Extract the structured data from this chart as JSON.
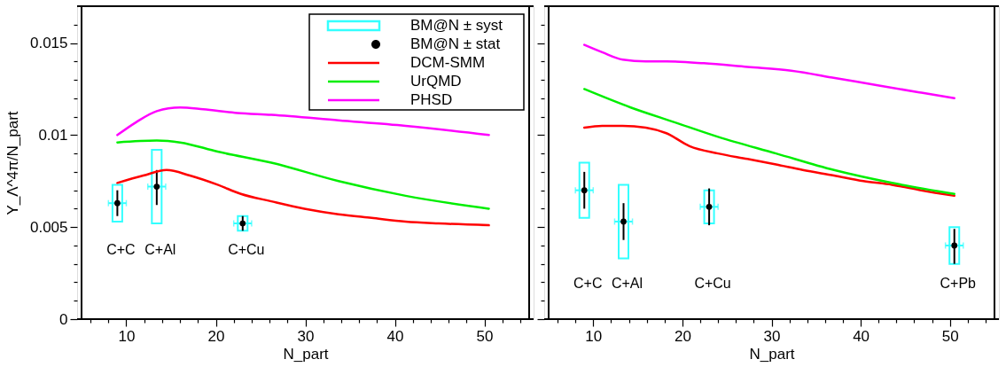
{
  "chart_data": [
    {
      "type": "line",
      "xlabel": "N_part",
      "ylabel": "Y_Λ^4π/N_part",
      "xlim": [
        5,
        55
      ],
      "ylim": [
        0,
        0.017
      ],
      "xticks": [
        {
          "value": 6,
          "label": null
        },
        {
          "value": 8,
          "label": null
        },
        10,
        {
          "value": 12,
          "label": null
        },
        {
          "value": 14,
          "label": null
        },
        {
          "value": 16,
          "label": null
        },
        {
          "value": 18,
          "label": null
        },
        20,
        {
          "value": 22,
          "label": null
        },
        {
          "value": 24,
          "label": null
        },
        {
          "value": 26,
          "label": null
        },
        {
          "value": 28,
          "label": null
        },
        30,
        {
          "value": 32,
          "label": null
        },
        {
          "value": 34,
          "label": null
        },
        {
          "value": 36,
          "label": null
        },
        {
          "value": 38,
          "label": null
        },
        40,
        {
          "value": 42,
          "label": null
        },
        {
          "value": 44,
          "label": null
        },
        {
          "value": 46,
          "label": null
        },
        {
          "value": 48,
          "label": null
        },
        50,
        {
          "value": 52,
          "label": null
        },
        {
          "value": 54,
          "label": null
        }
      ],
      "yticks": [
        0,
        {
          "value": 0.001,
          "label": null
        },
        {
          "value": 0.002,
          "label": null
        },
        {
          "value": 0.003,
          "label": null
        },
        {
          "value": 0.004,
          "label": null
        },
        0.005,
        {
          "value": 0.006,
          "label": null
        },
        {
          "value": 0.007,
          "label": null
        },
        {
          "value": 0.008,
          "label": null
        },
        {
          "value": 0.009,
          "label": null
        },
        0.01,
        {
          "value": 0.011,
          "label": null
        },
        {
          "value": 0.012,
          "label": null
        },
        {
          "value": 0.013,
          "label": null
        },
        {
          "value": 0.014,
          "label": null
        },
        0.015,
        {
          "value": 0.016,
          "label": null
        }
      ],
      "legend": "top right",
      "line_style": "solid",
      "series": [
        {
          "name": "BM@N  ± syst",
          "type": "bar",
          "color": "#33ffff",
          "x": [
            9,
            13.4,
            23
          ],
          "base": [
            0.0053,
            0.0052,
            0.0048
          ],
          "values": [
            0.002,
            0.004,
            0.0008
          ]
        },
        {
          "name": "BM@N  ± stat",
          "type": "scatter",
          "marker": "circle",
          "color": "#000000",
          "x": [
            9,
            13.4,
            23
          ],
          "values": [
            0.0063,
            0.0072,
            0.0052
          ],
          "errors": [
            [
              0.0056,
              0.007
            ],
            [
              0.0062,
              0.0081
            ],
            [
              0.0048,
              0.0056
            ]
          ],
          "xerrors": [
            [
              8,
              10
            ],
            [
              12.4,
              14.4
            ],
            [
              22,
              24
            ]
          ]
        },
        {
          "name": "DCM-SMM",
          "color": "#ff0000",
          "x": [
            9,
            11.9,
            14.5,
            17.1,
            20.2,
            22.8,
            26.2,
            29.9,
            33.7,
            37.4,
            41.2,
            44.9,
            50.5
          ],
          "values": [
            0.0074,
            0.0078,
            0.0081,
            0.0078,
            0.0073,
            0.0068,
            0.0064,
            0.006,
            0.0057,
            0.0055,
            0.0053,
            0.0052,
            0.0051
          ]
        },
        {
          "name": "UrQMD",
          "color": "#00ee00",
          "x": [
            9,
            13.4,
            16,
            20.2,
            26.2,
            33.7,
            41.2,
            50.5
          ],
          "values": [
            0.0096,
            0.0097,
            0.0096,
            0.0091,
            0.0085,
            0.0075,
            0.0067,
            0.006
          ]
        },
        {
          "name": "PHSD",
          "color": "#ff00ff",
          "x": [
            9,
            11.1,
            13.4,
            16,
            18.6,
            22.4,
            26.2,
            33.7,
            41.2,
            50.5
          ],
          "values": [
            0.01,
            0.0107,
            0.0113,
            0.0115,
            0.0114,
            0.0112,
            0.0111,
            0.0108,
            0.0105,
            0.01
          ]
        }
      ],
      "annotations": [
        "C+C",
        "C+Al",
        "C+Cu"
      ]
    },
    {
      "type": "line",
      "xlabel": "N_part",
      "xlim": [
        5,
        55
      ],
      "ylim": [
        0,
        0.017
      ],
      "tick_labels": "x",
      "line_style": "solid",
      "xticks": [
        {
          "value": 6,
          "label": null
        },
        {
          "value": 8,
          "label": null
        },
        10,
        {
          "value": 12,
          "label": null
        },
        {
          "value": 14,
          "label": null
        },
        {
          "value": 16,
          "label": null
        },
        {
          "value": 18,
          "label": null
        },
        20,
        {
          "value": 22,
          "label": null
        },
        {
          "value": 24,
          "label": null
        },
        {
          "value": 26,
          "label": null
        },
        {
          "value": 28,
          "label": null
        },
        30,
        {
          "value": 32,
          "label": null
        },
        {
          "value": 34,
          "label": null
        },
        {
          "value": 36,
          "label": null
        },
        {
          "value": 38,
          "label": null
        },
        40,
        {
          "value": 42,
          "label": null
        },
        {
          "value": 44,
          "label": null
        },
        {
          "value": 46,
          "label": null
        },
        {
          "value": 48,
          "label": null
        },
        50,
        {
          "value": 52,
          "label": null
        },
        {
          "value": 54,
          "label": null
        }
      ],
      "yticks": [
        0,
        {
          "value": 0.001,
          "label": null
        },
        {
          "value": 0.002,
          "label": null
        },
        {
          "value": 0.003,
          "label": null
        },
        {
          "value": 0.004,
          "label": null
        },
        0.005,
        {
          "value": 0.006,
          "label": null
        },
        {
          "value": 0.007,
          "label": null
        },
        {
          "value": 0.008,
          "label": null
        },
        {
          "value": 0.009,
          "label": null
        },
        0.01,
        {
          "value": 0.011,
          "label": null
        },
        {
          "value": 0.012,
          "label": null
        },
        {
          "value": 0.013,
          "label": null
        },
        {
          "value": 0.014,
          "label": null
        },
        0.015,
        {
          "value": 0.016,
          "label": null
        }
      ],
      "series": [
        {
          "type": "bar",
          "color": "#33ffff",
          "x": [
            9,
            13.4,
            23,
            50.5
          ],
          "base": [
            0.0055,
            0.0033,
            0.0052,
            0.003
          ],
          "values": [
            0.003,
            0.004,
            0.0018,
            0.002
          ]
        },
        {
          "type": "scatter",
          "marker": "circle",
          "color": "#000000",
          "x": [
            9,
            13.4,
            23,
            50.5
          ],
          "values": [
            0.007,
            0.0053,
            0.0061,
            0.004
          ],
          "errors": [
            [
              0.006,
              0.008
            ],
            [
              0.0043,
              0.0063
            ],
            [
              0.0051,
              0.0071
            ],
            [
              0.003,
              0.0049
            ]
          ],
          "xerrors": [
            [
              8,
              10
            ],
            [
              12.4,
              14.4
            ],
            [
              22,
              24
            ],
            [
              49.5,
              51.5
            ]
          ]
        },
        {
          "color": "#ff0000",
          "x": [
            9,
            11,
            13.3,
            15.9,
            18.2,
            20.8,
            24,
            27.3,
            30.5,
            33.5,
            37,
            40.3,
            43.5,
            46.8,
            50.5
          ],
          "values": [
            0.0104,
            0.0105,
            0.0105,
            0.0104,
            0.0101,
            0.0094,
            0.009,
            0.0087,
            0.0084,
            0.0081,
            0.0078,
            0.0075,
            0.0073,
            0.007,
            0.0067
          ]
        },
        {
          "color": "#00ee00",
          "x": [
            9,
            14.2,
            19.1,
            24,
            30.5,
            37,
            43.5,
            50.5
          ],
          "values": [
            0.0125,
            0.0115,
            0.0107,
            0.0099,
            0.009,
            0.0081,
            0.0074,
            0.0068
          ]
        },
        {
          "color": "#ff00ff",
          "x": [
            9,
            11,
            13.3,
            15.9,
            18.2,
            22.4,
            27.3,
            32.2,
            37.1,
            41.9,
            46.8,
            50.5
          ],
          "values": [
            0.0149,
            0.0145,
            0.0141,
            0.014,
            0.014,
            0.0139,
            0.0137,
            0.0135,
            0.0131,
            0.0127,
            0.0123,
            0.012
          ]
        }
      ],
      "annotations": [
        "C+C",
        "C+Al",
        "C+Cu",
        "C+Pb"
      ]
    }
  ]
}
